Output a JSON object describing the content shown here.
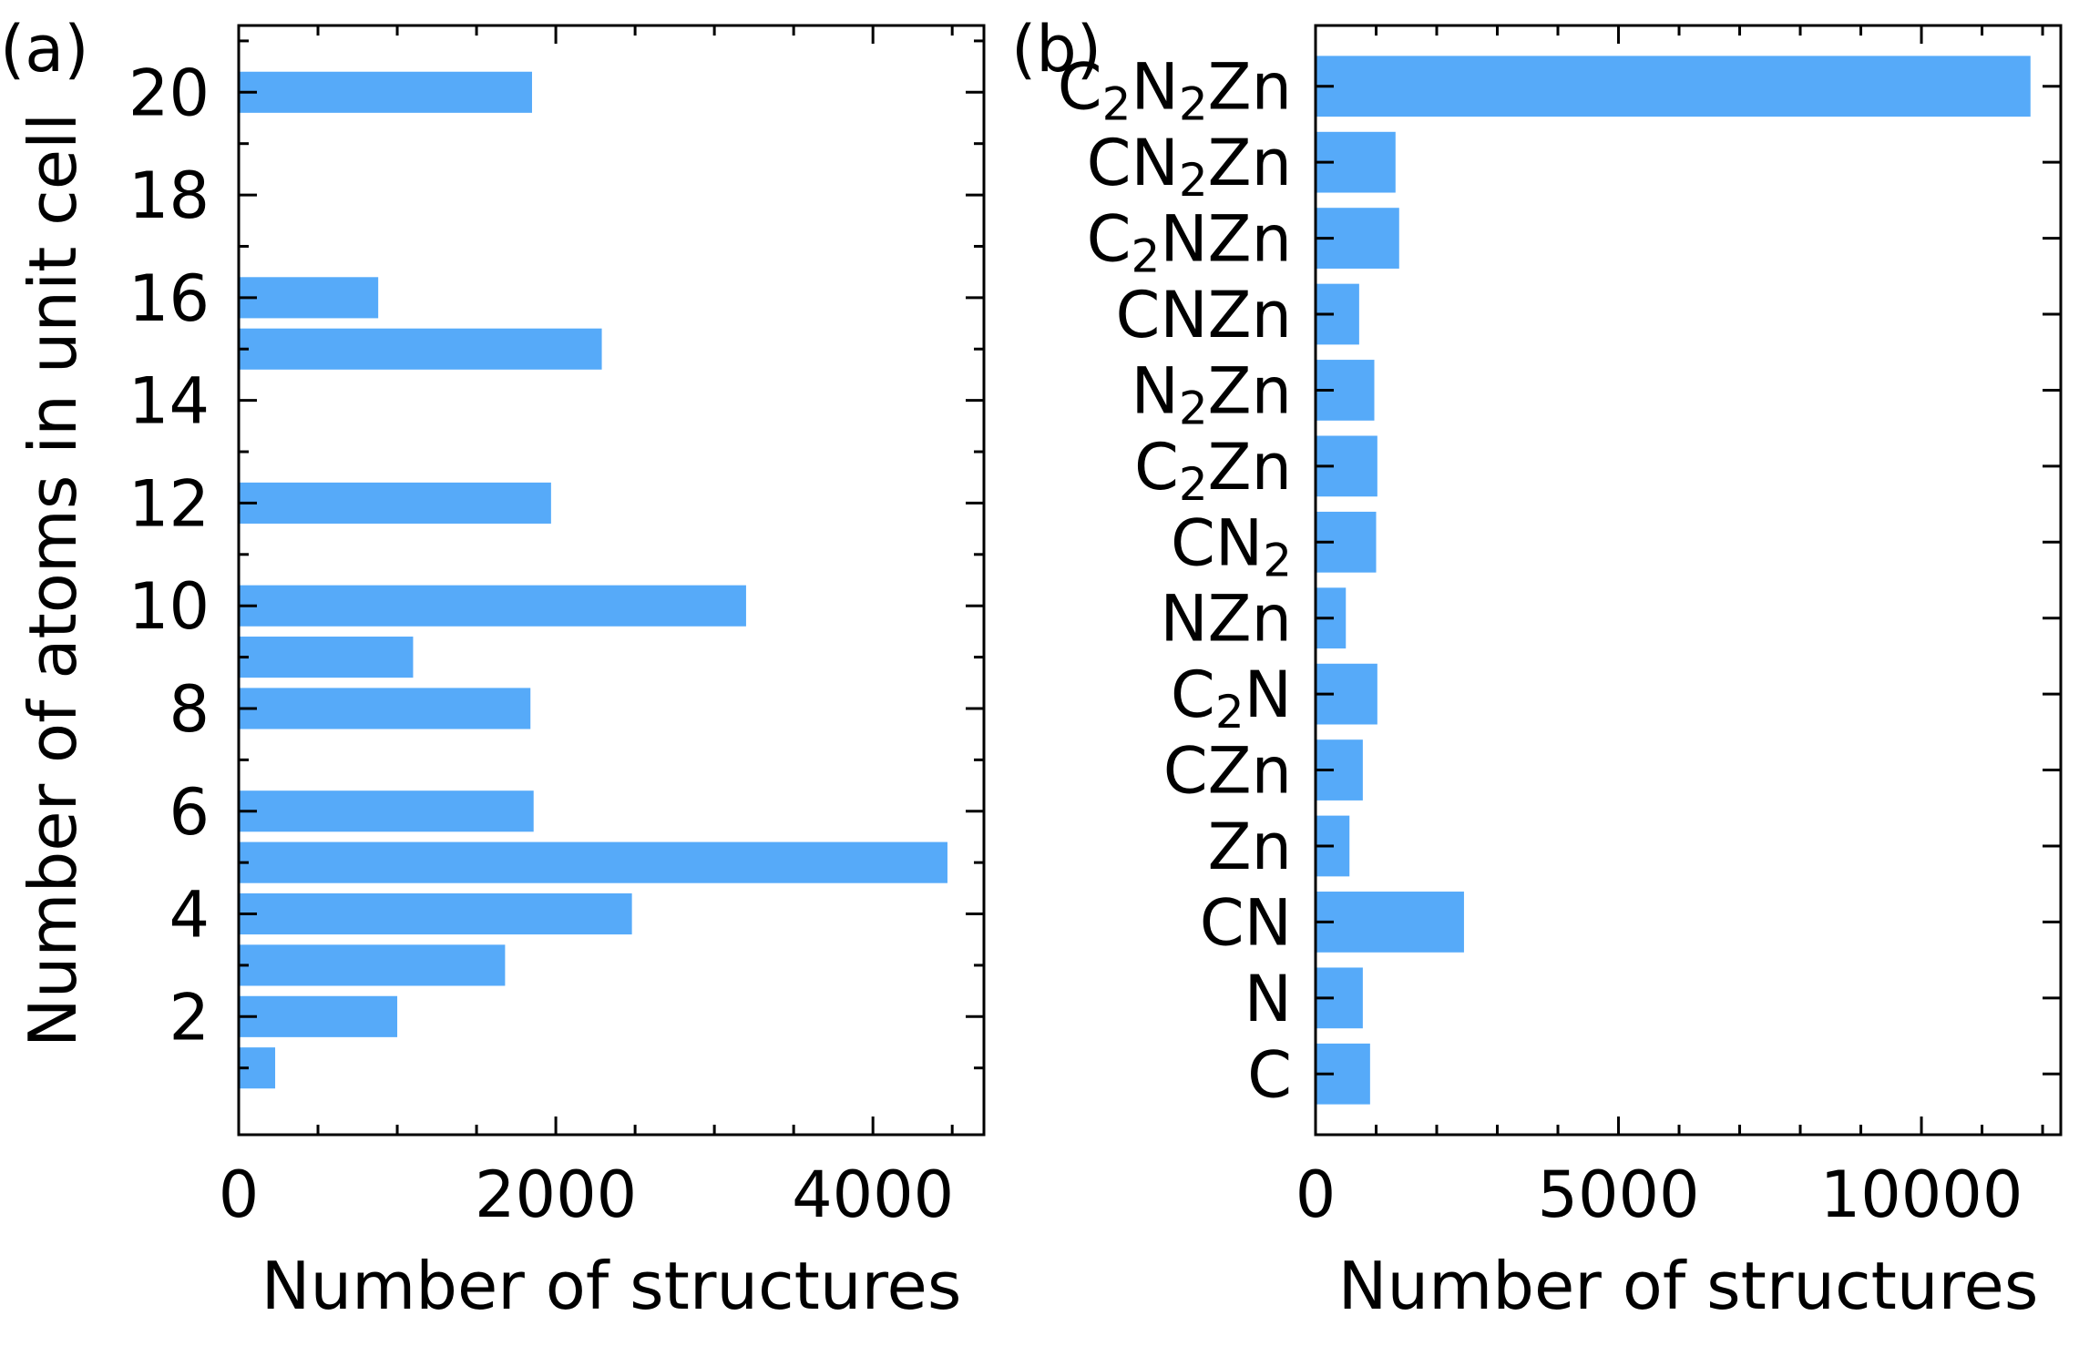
{
  "colors": {
    "bar": "#56aaf9",
    "axis": "#000000",
    "background": "#ffffff"
  },
  "chart_data": [
    {
      "type": "bar",
      "orientation": "horizontal",
      "panel_label": "(a)",
      "xlabel": "Number of structures",
      "ylabel": "Number of atoms in unit cell",
      "xlim": [
        0,
        4700
      ],
      "ylim": [
        -0.3,
        21.3
      ],
      "xticks": [
        0,
        2000,
        4000
      ],
      "yticks": [
        2,
        4,
        6,
        8,
        10,
        12,
        14,
        16,
        18,
        20
      ],
      "y": [
        1,
        2,
        3,
        4,
        5,
        6,
        8,
        9,
        10,
        12,
        15,
        16,
        20
      ],
      "values": [
        230,
        1000,
        1680,
        2480,
        4470,
        1860,
        1840,
        1100,
        3200,
        1970,
        2290,
        880,
        1850
      ],
      "legend": null,
      "grid": false
    },
    {
      "type": "bar",
      "orientation": "horizontal",
      "panel_label": "(b)",
      "xlabel": "Number of structures",
      "ylabel": "",
      "xlim": [
        0,
        12300
      ],
      "xticks": [
        0,
        5000,
        10000
      ],
      "categories": [
        {
          "name": "C",
          "label": [
            {
              "t": "C"
            }
          ]
        },
        {
          "name": "N",
          "label": [
            {
              "t": "N"
            }
          ]
        },
        {
          "name": "CN",
          "label": [
            {
              "t": "CN"
            }
          ]
        },
        {
          "name": "Zn",
          "label": [
            {
              "t": "Zn"
            }
          ]
        },
        {
          "name": "CZn",
          "label": [
            {
              "t": "CZn"
            }
          ]
        },
        {
          "name": "C2N",
          "label": [
            {
              "t": "C"
            },
            {
              "t": "2",
              "sub": true
            },
            {
              "t": "N"
            }
          ]
        },
        {
          "name": "NZn",
          "label": [
            {
              "t": "NZn"
            }
          ]
        },
        {
          "name": "CN2",
          "label": [
            {
              "t": "CN"
            },
            {
              "t": "2",
              "sub": true
            }
          ]
        },
        {
          "name": "C2Zn",
          "label": [
            {
              "t": "C"
            },
            {
              "t": "2",
              "sub": true
            },
            {
              "t": "Zn"
            }
          ]
        },
        {
          "name": "N2Zn",
          "label": [
            {
              "t": "N"
            },
            {
              "t": "2",
              "sub": true
            },
            {
              "t": "Zn"
            }
          ]
        },
        {
          "name": "CNZn",
          "label": [
            {
              "t": "CNZn"
            }
          ]
        },
        {
          "name": "C2NZn",
          "label": [
            {
              "t": "C"
            },
            {
              "t": "2",
              "sub": true
            },
            {
              "t": "NZn"
            }
          ]
        },
        {
          "name": "CN2Zn",
          "label": [
            {
              "t": "CN"
            },
            {
              "t": "2",
              "sub": true
            },
            {
              "t": "Zn"
            }
          ]
        },
        {
          "name": "C2N2Zn",
          "label": [
            {
              "t": "C"
            },
            {
              "t": "2",
              "sub": true
            },
            {
              "t": "N"
            },
            {
              "t": "2",
              "sub": true
            },
            {
              "t": "Zn"
            }
          ]
        }
      ],
      "values": [
        900,
        780,
        2450,
        560,
        780,
        1020,
        500,
        1000,
        1020,
        970,
        720,
        1380,
        1320,
        11800
      ],
      "legend": null,
      "grid": false
    }
  ]
}
